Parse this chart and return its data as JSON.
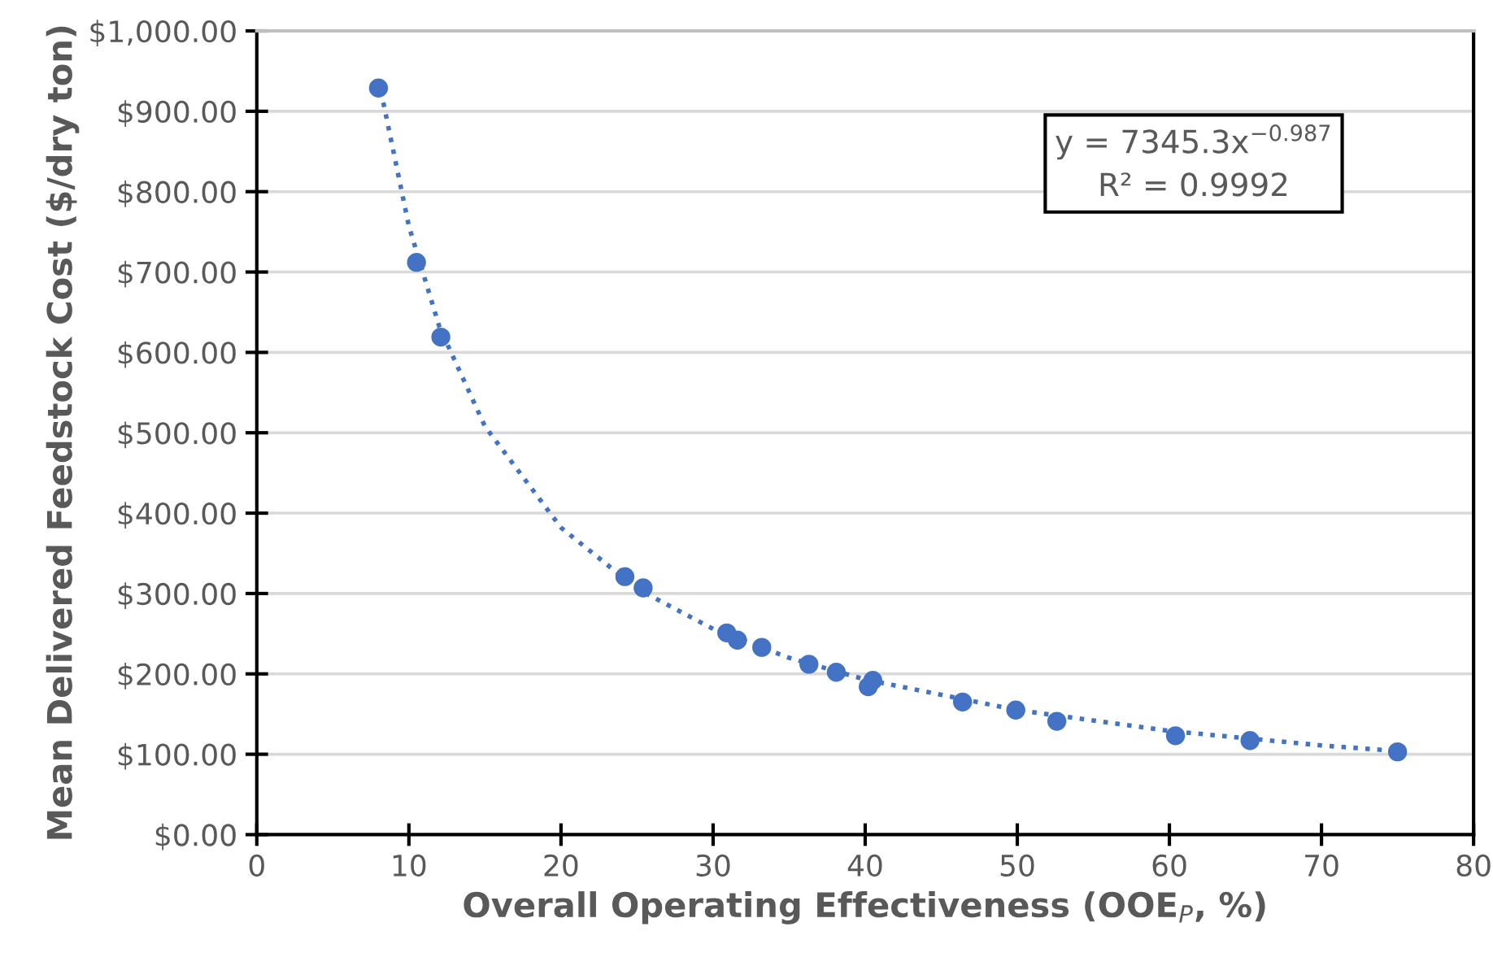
{
  "chart_data": {
    "type": "scatter",
    "xlabel": "Overall Operating Effectiveness (OOE$_{P}$, %)",
    "ylabel": "Mean Delivered Feedstock Cost ($/dry ton)",
    "x": [
      8.0,
      10.5,
      12.1,
      24.2,
      25.4,
      30.9,
      31.6,
      33.2,
      36.3,
      38.1,
      40.5,
      40.2,
      46.4,
      49.9,
      52.6,
      60.4,
      65.3,
      75.0
    ],
    "series": [
      {
        "color": "#4472c4",
        "marker": "circle",
        "values": [
          929,
          712,
          619,
          321,
          307,
          251,
          242,
          233,
          212,
          202,
          192,
          184,
          165,
          155,
          141,
          123,
          117,
          103
        ]
      },
      {
        "type": "line",
        "color": "#4472c4",
        "line_style": "dotted",
        "marker": "none",
        "x": [
          8,
          10,
          12,
          15,
          20,
          25,
          30,
          35,
          40,
          50,
          60,
          70,
          75
        ],
        "values": [
          940,
          757,
          632,
          508,
          382,
          306,
          256,
          220,
          193,
          155,
          129,
          111,
          104
        ]
      }
    ],
    "annotations": [
      "y = 7345.3x$^{−0.987}$\nR² = 0.9992"
    ],
    "xlim": [
      0,
      80
    ],
    "xticks": [
      0,
      10,
      20,
      30,
      40,
      50,
      60,
      70,
      80
    ],
    "ylim": [
      0,
      1000
    ],
    "yticks": [
      {
        "value": 0,
        "label": "$0.00"
      },
      {
        "value": 100,
        "label": "$100.00"
      },
      {
        "value": 200,
        "label": "$200.00"
      },
      {
        "value": 300,
        "label": "$300.00"
      },
      {
        "value": 400,
        "label": "$400.00"
      },
      {
        "value": 500,
        "label": "$500.00"
      },
      {
        "value": 600,
        "label": "$600.00"
      },
      {
        "value": 700,
        "label": "$700.00"
      },
      {
        "value": 800,
        "label": "$800.00"
      },
      {
        "value": 900,
        "label": "$900.00"
      },
      {
        "value": 1000,
        "label": "$1,000.00"
      }
    ],
    "grid": "y"
  }
}
